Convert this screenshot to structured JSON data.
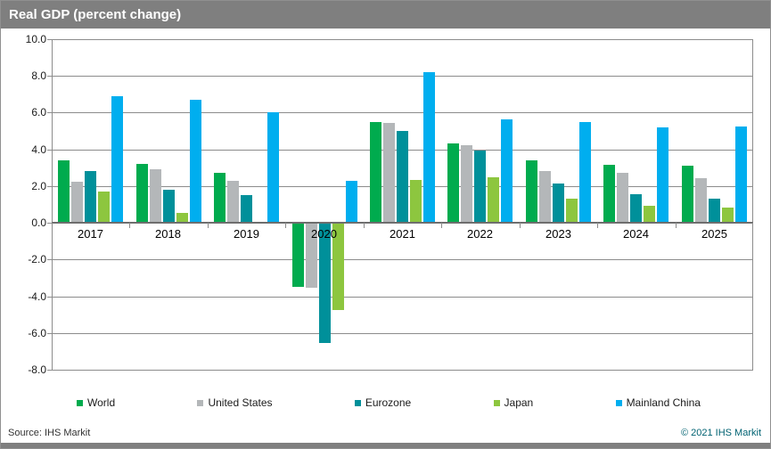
{
  "header": {
    "title": "Real GDP (percent change)"
  },
  "chart_data": {
    "type": "bar",
    "title": "Real GDP (percent change)",
    "categories": [
      "2017",
      "2018",
      "2019",
      "2020",
      "2021",
      "2022",
      "2023",
      "2024",
      "2025"
    ],
    "series": [
      {
        "name": "World",
        "color": "#00AB4E",
        "values": [
          3.4,
          3.2,
          2.7,
          -3.45,
          5.5,
          4.3,
          3.4,
          3.15,
          3.1
        ]
      },
      {
        "name": "United States",
        "color": "#B4B7B9",
        "values": [
          2.25,
          2.9,
          2.3,
          -3.5,
          5.45,
          4.25,
          2.8,
          2.7,
          2.45
        ]
      },
      {
        "name": "Eurozone",
        "color": "#00909A",
        "values": [
          2.8,
          1.8,
          1.5,
          -6.5,
          5.0,
          3.95,
          2.15,
          1.55,
          1.3
        ]
      },
      {
        "name": "Japan",
        "color": "#8DC63F",
        "values": [
          1.7,
          0.55,
          0.0,
          -4.7,
          2.35,
          2.5,
          1.3,
          0.95,
          0.85
        ]
      },
      {
        "name": "Mainland China",
        "color": "#00AEEF",
        "values": [
          6.9,
          6.7,
          6.0,
          2.3,
          8.2,
          5.65,
          5.5,
          5.2,
          5.25
        ]
      }
    ],
    "ylim": [
      -8,
      10
    ],
    "ytick_step": 2,
    "ytick_decimals": 1,
    "grid": true,
    "legend_position": "bottom",
    "gridline_color": "#8c8c8c"
  },
  "footer": {
    "source": "Source: IHS Markit",
    "copyright": "© 2021  IHS Markit"
  }
}
